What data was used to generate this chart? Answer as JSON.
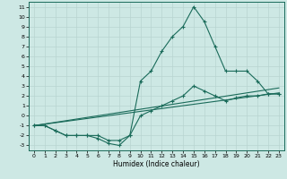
{
  "background_color": "#cde8e4",
  "grid_color": "#b8d4d0",
  "line_color": "#1a6b5a",
  "xlabel": "Humidex (Indice chaleur)",
  "xlim": [
    -0.5,
    23.5
  ],
  "ylim": [
    -3.5,
    11.5
  ],
  "xticks": [
    0,
    1,
    2,
    3,
    4,
    5,
    6,
    7,
    8,
    9,
    10,
    11,
    12,
    13,
    14,
    15,
    16,
    17,
    18,
    19,
    20,
    21,
    22,
    23
  ],
  "yticks": [
    -3,
    -2,
    -1,
    0,
    1,
    2,
    3,
    4,
    5,
    6,
    7,
    8,
    9,
    10,
    11
  ],
  "peak_series": [
    [
      0,
      -1
    ],
    [
      1,
      -1
    ],
    [
      2,
      -1.5
    ],
    [
      3,
      -2
    ],
    [
      4,
      -2
    ],
    [
      5,
      -2
    ],
    [
      6,
      -2.3
    ],
    [
      7,
      -2.8
    ],
    [
      8,
      -3
    ],
    [
      9,
      -2
    ],
    [
      10,
      3.5
    ],
    [
      11,
      4.5
    ],
    [
      12,
      6.5
    ],
    [
      13,
      8.0
    ],
    [
      14,
      9.0
    ],
    [
      15,
      11.0
    ],
    [
      16,
      9.5
    ],
    [
      17,
      7.0
    ],
    [
      18,
      4.5
    ],
    [
      19,
      4.5
    ],
    [
      20,
      4.5
    ],
    [
      21,
      3.5
    ],
    [
      22,
      2.2
    ],
    [
      23,
      2.2
    ]
  ],
  "low_series": [
    [
      0,
      -1
    ],
    [
      1,
      -1
    ],
    [
      2,
      -1.5
    ],
    [
      3,
      -2
    ],
    [
      4,
      -2
    ],
    [
      5,
      -2
    ],
    [
      6,
      -2
    ],
    [
      7,
      -2.5
    ],
    [
      8,
      -2.5
    ],
    [
      9,
      -2
    ],
    [
      10,
      0.0
    ],
    [
      11,
      0.5
    ],
    [
      12,
      1.0
    ],
    [
      13,
      1.5
    ],
    [
      14,
      2.0
    ],
    [
      15,
      3.0
    ],
    [
      16,
      2.5
    ],
    [
      17,
      2.0
    ],
    [
      18,
      1.5
    ],
    [
      19,
      1.8
    ],
    [
      20,
      2.0
    ],
    [
      21,
      2.0
    ],
    [
      22,
      2.2
    ],
    [
      23,
      2.2
    ]
  ],
  "line1": [
    [
      0,
      -1
    ],
    [
      23,
      2.8
    ]
  ],
  "line2": [
    [
      0,
      -1
    ],
    [
      23,
      2.3
    ]
  ]
}
